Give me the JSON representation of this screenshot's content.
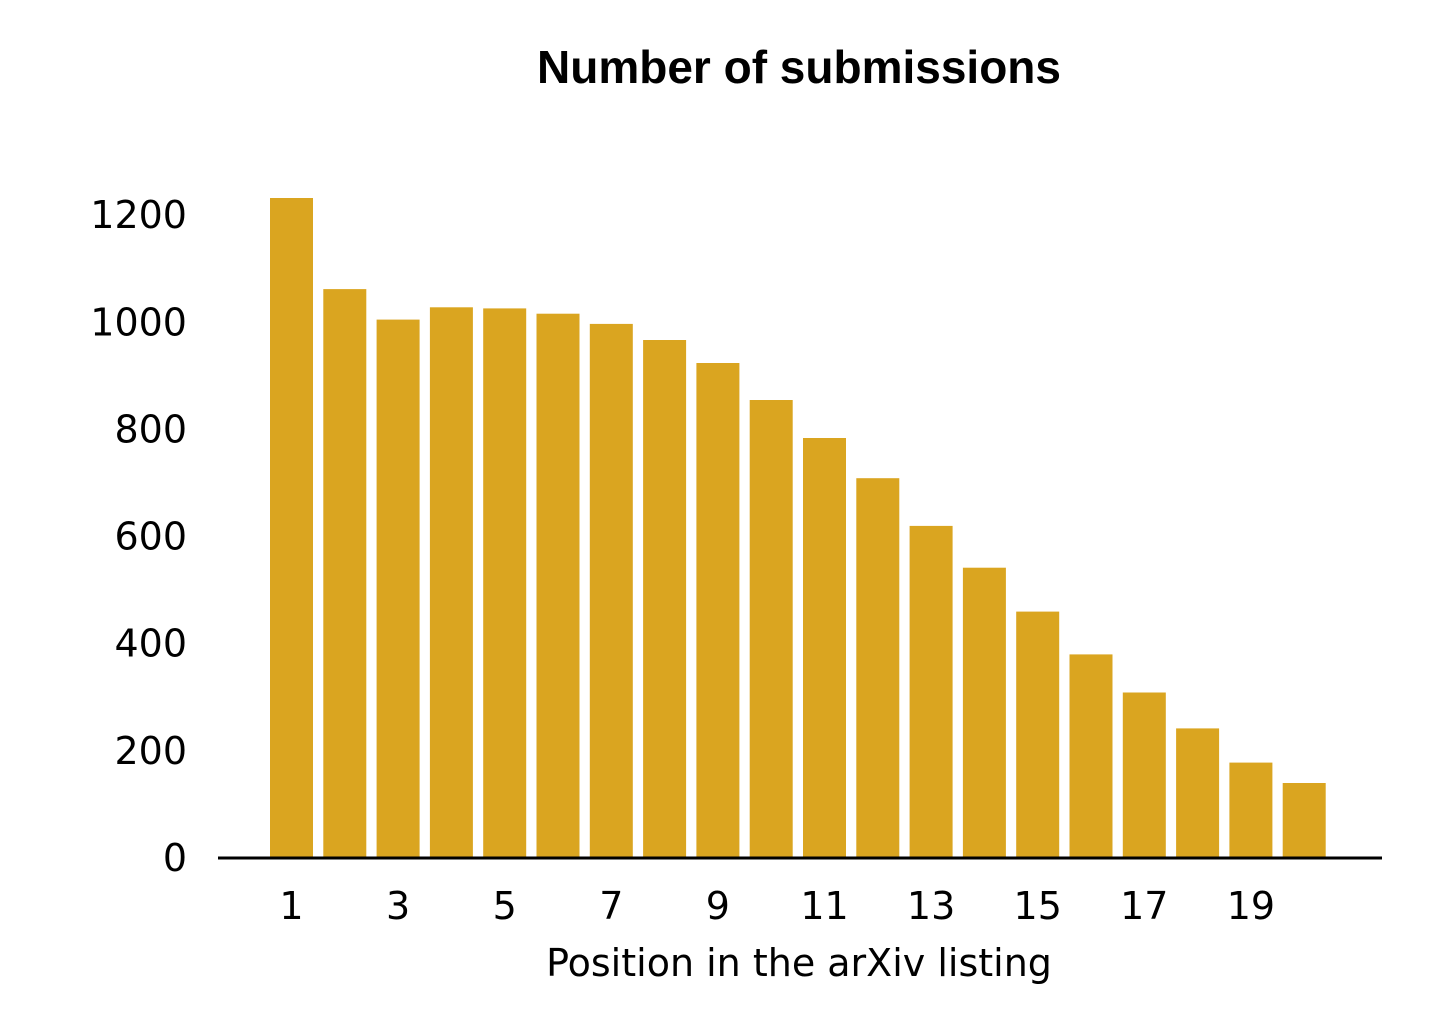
{
  "chart_data": {
    "type": "bar",
    "title": "Number of submissions",
    "xlabel": "Position in the arXiv listing",
    "ylabel": "",
    "categories": [
      1,
      2,
      3,
      4,
      5,
      6,
      7,
      8,
      9,
      10,
      11,
      12,
      13,
      14,
      15,
      16,
      17,
      18,
      19,
      20
    ],
    "values": [
      1232,
      1062,
      1005,
      1028,
      1026,
      1016,
      997,
      967,
      924,
      855,
      784,
      709,
      620,
      542,
      460,
      380,
      309,
      242,
      178,
      140
    ],
    "ylim": [
      0,
      1300
    ],
    "yticks": [
      0,
      200,
      400,
      600,
      800,
      1000,
      1200
    ],
    "xticks": [
      1,
      3,
      5,
      7,
      9,
      11,
      13,
      15,
      17,
      19
    ],
    "grid": false,
    "bar_color": "#DAA520"
  }
}
